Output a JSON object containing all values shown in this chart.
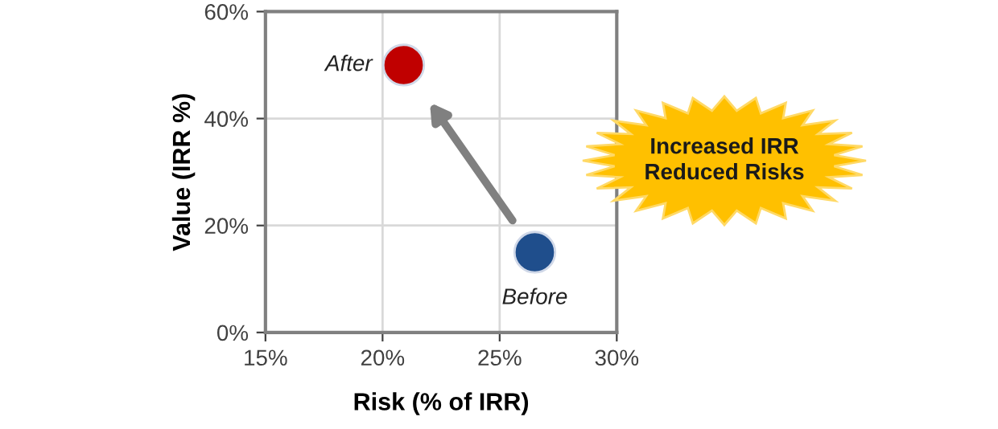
{
  "chart_data": {
    "type": "scatter",
    "xlabel": "Risk (% of IRR)",
    "ylabel": "Value (IRR %)",
    "series": [
      {
        "name": "Before",
        "color": "#1f4e8c",
        "x": [
          26.5
        ],
        "values": [
          15
        ]
      },
      {
        "name": "After",
        "color": "#c00000",
        "x": [
          20.9
        ],
        "values": [
          50
        ]
      }
    ],
    "xlim": [
      15,
      30
    ],
    "ylim": [
      0,
      60
    ],
    "xticks": [
      {
        "value": 15,
        "label": "15%"
      },
      {
        "value": 20,
        "label": "20%"
      },
      {
        "value": 25,
        "label": "25%"
      },
      {
        "value": 30,
        "label": "30%"
      }
    ],
    "yticks": [
      {
        "value": 0,
        "label": "0%"
      },
      {
        "value": 20,
        "label": "20%"
      },
      {
        "value": 40,
        "label": "40%"
      },
      {
        "value": 60,
        "label": "60%"
      }
    ],
    "grid": true,
    "marker": "circle",
    "legend": false,
    "annotations": [
      "Increased IRR\nReduced Risks"
    ]
  }
}
